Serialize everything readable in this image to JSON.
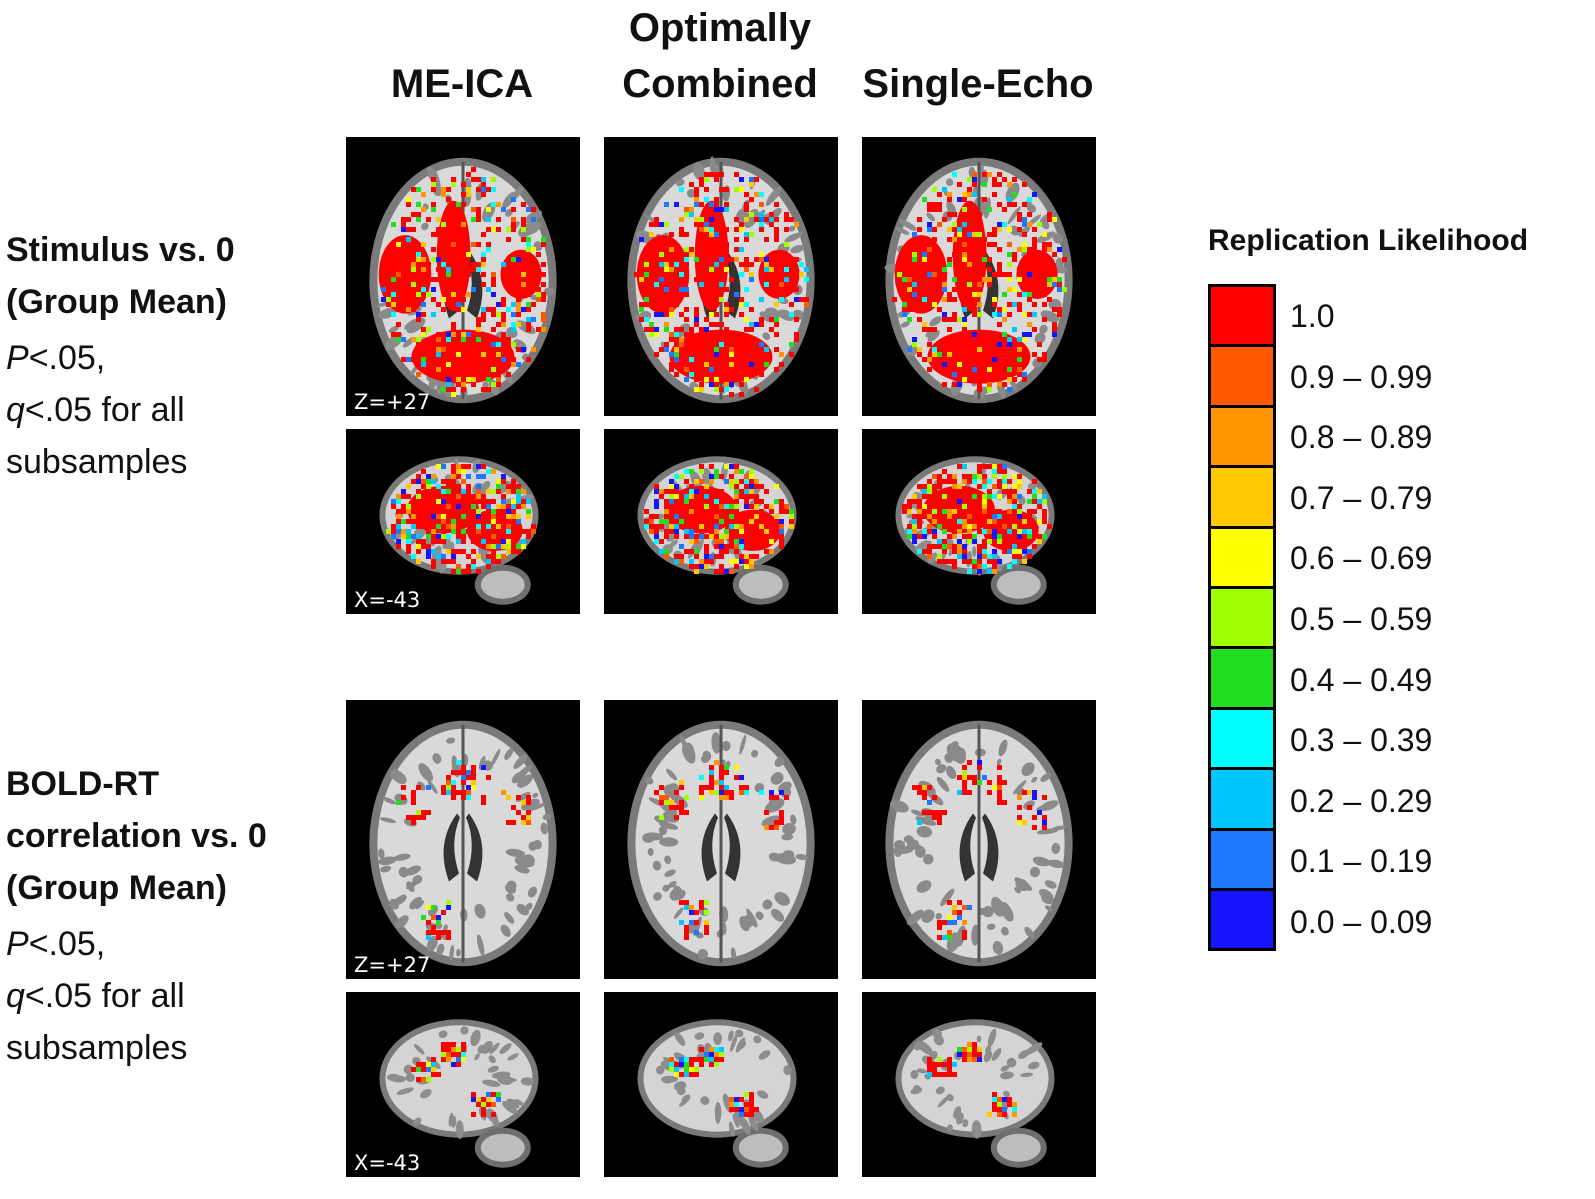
{
  "columns": [
    {
      "label_line1": "",
      "label_line2": "ME-ICA"
    },
    {
      "label_line1": "Optimally",
      "label_line2": "Combined"
    },
    {
      "label_line1": "",
      "label_line2": "Single-Echo"
    }
  ],
  "rows": [
    {
      "title_line1": "Stimulus vs. 0",
      "title_line2": "(Group Mean)",
      "title_line3": "",
      "stat_p_symbol": "P",
      "stat_p_rest": "<.05,",
      "stat_q_symbol": "q",
      "stat_q_rest": "<.05 for all",
      "stat_line3": "subsamples",
      "axial_coord": "Z=+27",
      "sagittal_coord": "X=-43",
      "activation": "widespread"
    },
    {
      "title_line1": "BOLD-RT",
      "title_line2": "correlation vs. 0",
      "title_line3": "(Group Mean)",
      "stat_p_symbol": "P",
      "stat_p_rest": "<.05,",
      "stat_q_symbol": "q",
      "stat_q_rest": "<.05 for all",
      "stat_line3": "subsamples",
      "axial_coord": "Z=+27",
      "sagittal_coord": "X=-43",
      "activation": "sparse"
    }
  ],
  "legend": {
    "title": "Replication Likelihood",
    "items": [
      {
        "label": "1.0",
        "color": "#ff0000"
      },
      {
        "label": "0.9 – 0.99",
        "color": "#ff5a00"
      },
      {
        "label": "0.8 – 0.89",
        "color": "#ff9600"
      },
      {
        "label": "0.7 – 0.79",
        "color": "#ffc800"
      },
      {
        "label": "0.6 – 0.69",
        "color": "#ffff00"
      },
      {
        "label": "0.5 – 0.59",
        "color": "#a0ff00"
      },
      {
        "label": "0.4 – 0.49",
        "color": "#22dd22"
      },
      {
        "label": "0.3 – 0.39",
        "color": "#00ffff"
      },
      {
        "label": "0.2 – 0.29",
        "color": "#00c8ff"
      },
      {
        "label": "0.1 – 0.19",
        "color": "#1e78ff"
      },
      {
        "label": "0.0 – 0.09",
        "color": "#1414ff"
      }
    ]
  }
}
